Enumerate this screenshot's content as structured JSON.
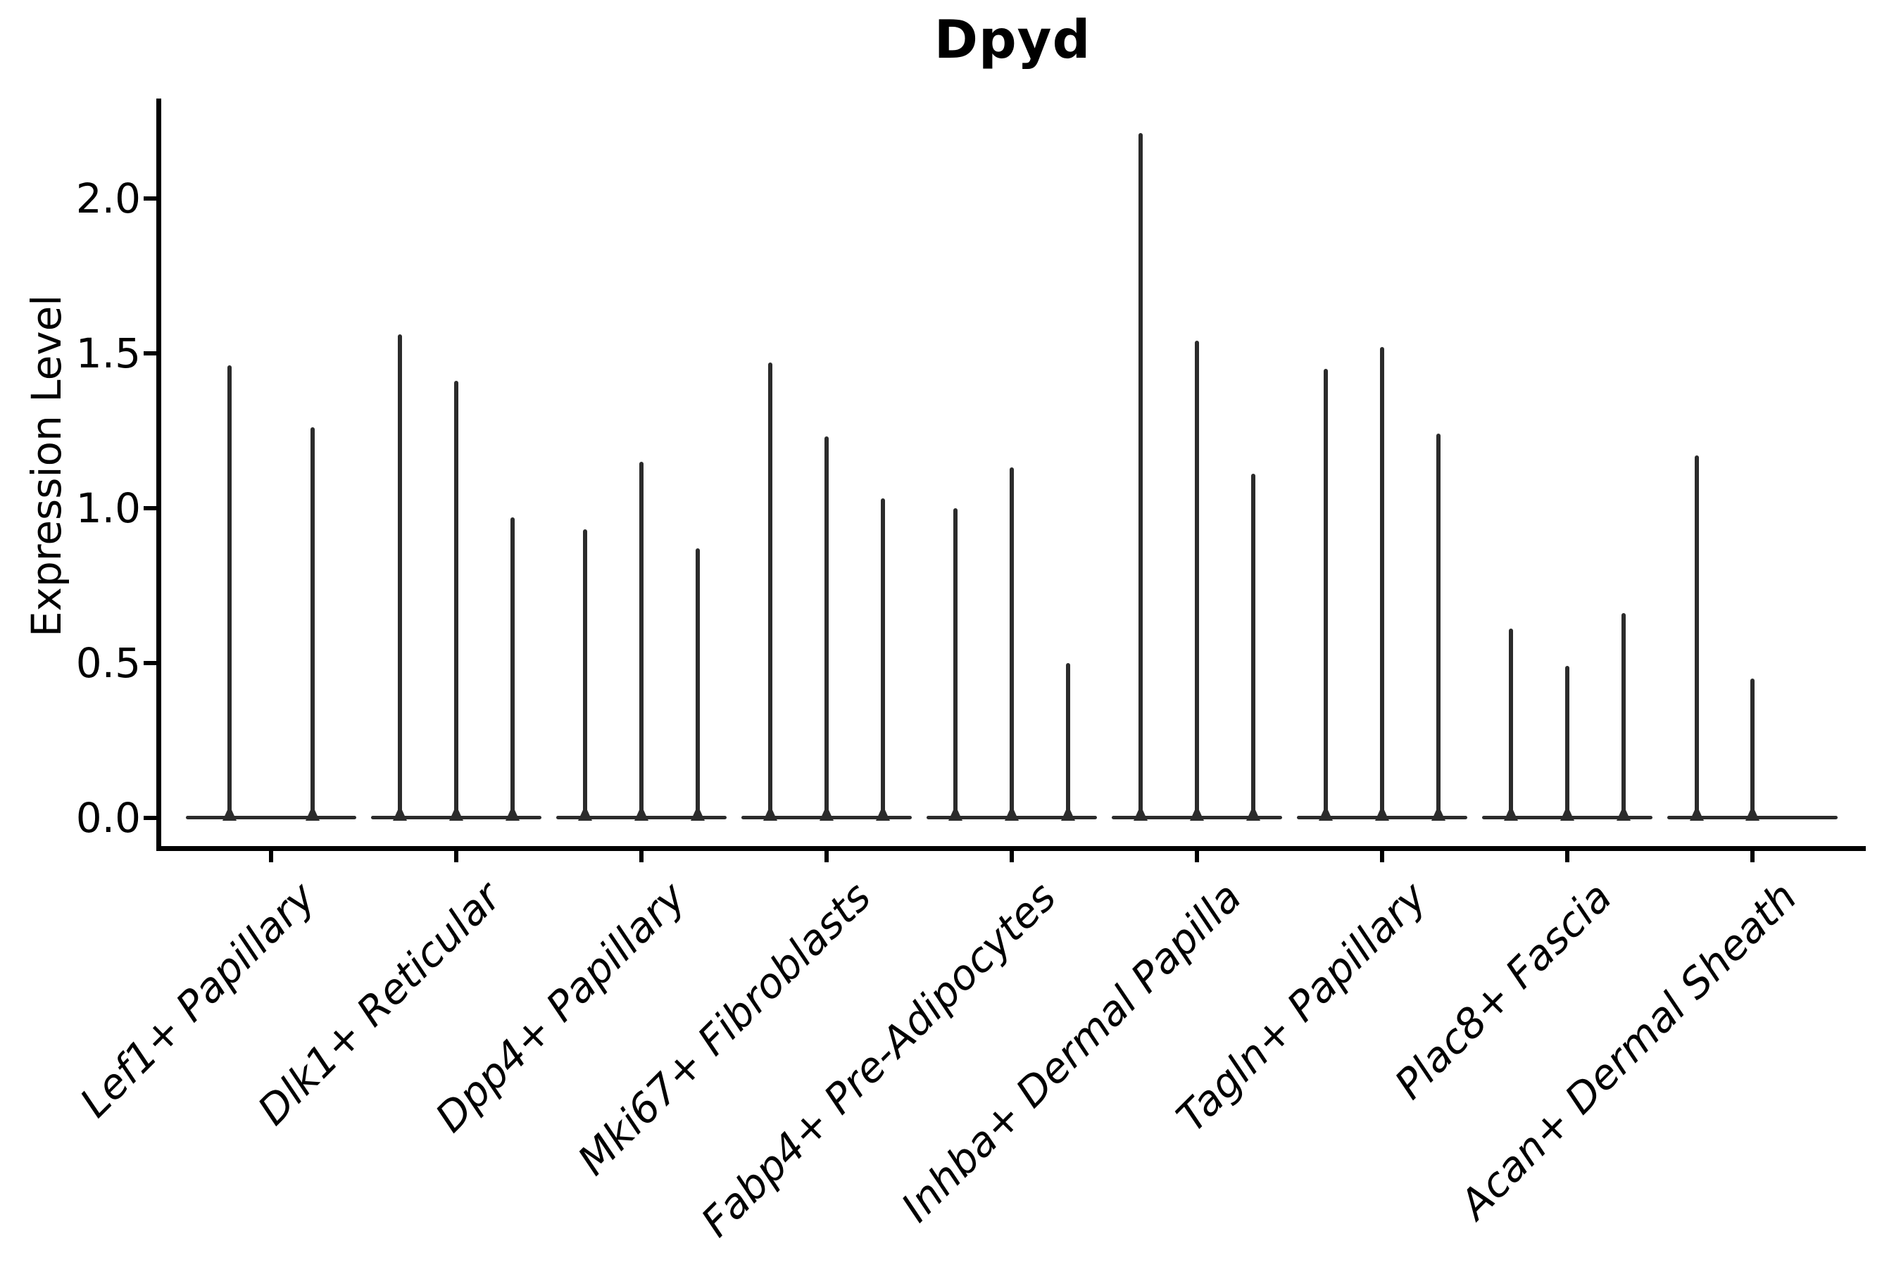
{
  "chart_data": {
    "type": "violin",
    "title": "Dpyd",
    "ylabel": "Expression Level",
    "grid": false,
    "legend": null,
    "ylim": [
      -0.09,
      2.32
    ],
    "ytick_values": [
      0.0,
      0.5,
      1.0,
      1.5,
      2.0
    ],
    "ytick_labels": [
      "0.0",
      "0.5",
      "1.0",
      "1.5",
      "2.0"
    ],
    "categories": [
      "Lef1+ Papillary",
      "Dlk1+ Reticular",
      "Dpp4+ Papillary",
      "Mki67+ Fibroblasts",
      "Fabp4+ Pre-Adipocytes",
      "Inhba+ Dermal Papilla",
      "Tagln+ Papillary",
      "Plac8+ Fascia",
      "Acan+ Dermal Sheath"
    ],
    "groups": [
      {
        "label": "Lef1+ Papillary",
        "spikes": [
          {
            "dx": -59,
            "value": 1.46
          },
          {
            "dx": 59,
            "value": 1.26
          }
        ]
      },
      {
        "label": "Dlk1+ Reticular",
        "spikes": [
          {
            "dx": -80,
            "value": 1.56
          },
          {
            "dx": 0,
            "value": 1.41
          },
          {
            "dx": 80,
            "value": 0.97
          }
        ]
      },
      {
        "label": "Dpp4+ Papillary",
        "spikes": [
          {
            "dx": -80,
            "value": 0.93
          },
          {
            "dx": 0,
            "value": 1.15
          },
          {
            "dx": 80,
            "value": 0.87
          }
        ]
      },
      {
        "label": "Mki67+ Fibroblasts",
        "spikes": [
          {
            "dx": -80,
            "value": 1.47
          },
          {
            "dx": 0,
            "value": 1.23
          },
          {
            "dx": 80,
            "value": 1.03
          }
        ]
      },
      {
        "label": "Fabp4+ Pre-Adipocytes",
        "spikes": [
          {
            "dx": -80,
            "value": 1.0
          },
          {
            "dx": 0,
            "value": 1.13
          },
          {
            "dx": 80,
            "value": 0.5
          }
        ]
      },
      {
        "label": "Inhba+ Dermal Papilla",
        "spikes": [
          {
            "dx": -80,
            "value": 2.21
          },
          {
            "dx": 0,
            "value": 1.54
          },
          {
            "dx": 80,
            "value": 1.11
          }
        ]
      },
      {
        "label": "Tagln+ Papillary",
        "spikes": [
          {
            "dx": -80,
            "value": 1.45
          },
          {
            "dx": 0,
            "value": 1.52
          },
          {
            "dx": 80,
            "value": 1.24
          }
        ]
      },
      {
        "label": "Plac8+ Fascia",
        "spikes": [
          {
            "dx": -80,
            "value": 0.61
          },
          {
            "dx": 0,
            "value": 0.49
          },
          {
            "dx": 80,
            "value": 0.66
          }
        ]
      },
      {
        "label": "Acan+ Dermal Sheath",
        "spikes": [
          {
            "dx": -79,
            "value": 1.17
          },
          {
            "dx": 0,
            "value": 0.45
          }
        ]
      }
    ],
    "colors": {
      "violin": "#2b2b2b",
      "spine": "#000000",
      "text": "#000000",
      "background": "#ffffff"
    }
  }
}
